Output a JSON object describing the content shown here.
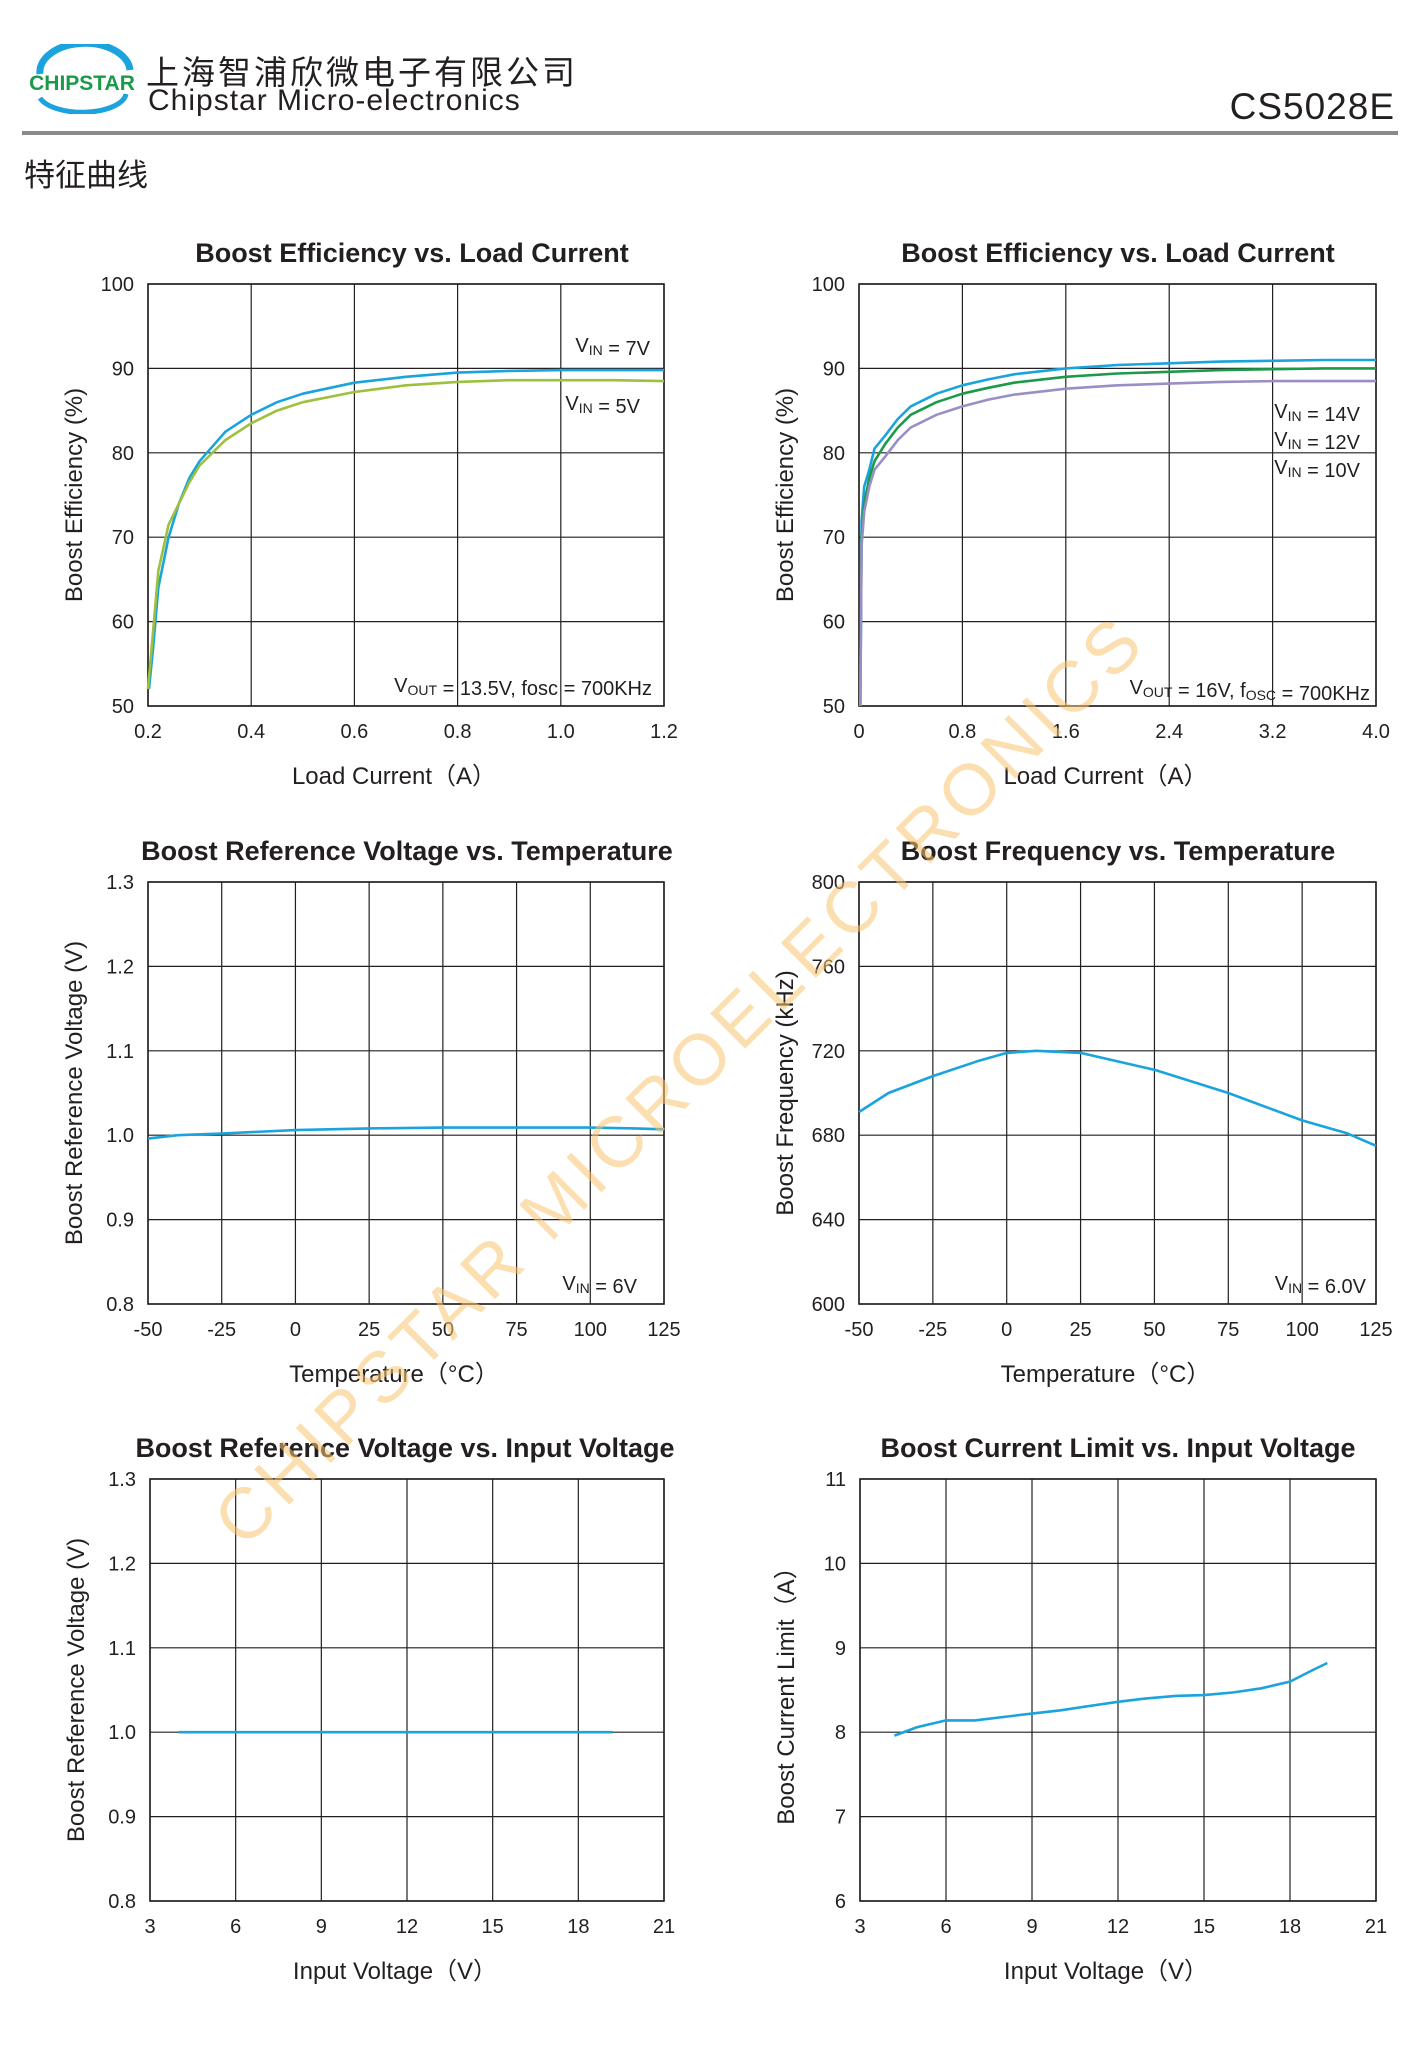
{
  "header": {
    "logo_text": "CHIPSTAR",
    "company_cn": "上海智浦欣微电子有限公司",
    "company_en": "Chipstar Micro-electronics",
    "part_number": "CS5028E"
  },
  "section_title": "特征曲线",
  "watermark": "CHIPSTAR MICROELECTRONICS",
  "colors": {
    "blue": "#1aa3dc",
    "green": "#9dc13c",
    "dark_green": "#1b9a4a",
    "purple": "#9a8fc4",
    "grid": "#231f20",
    "watermark": "#f9c36c"
  },
  "chart_data": [
    {
      "id": "c1",
      "type": "line",
      "title": "Boost Efficiency vs. Load Current",
      "xlabel": "Load Current（A）",
      "ylabel": "Boost Efficiency (%)",
      "xlim": [
        0.2,
        1.2
      ],
      "ylim": [
        50,
        100
      ],
      "xticks": [
        "0.2",
        "0.4",
        "0.6",
        "0.8",
        "1.0",
        "1.2"
      ],
      "yticks": [
        "50",
        "60",
        "70",
        "80",
        "90",
        "100"
      ],
      "grid": true,
      "annotation": {
        "pre": "V",
        "sub": "OUT",
        "post": " = 13.5V,  fosc = 700KHz"
      },
      "series": [
        {
          "label": {
            "pre": "V",
            "sub": "IN",
            "post": " = 7V"
          },
          "color": "#1aa3dc",
          "x": [
            0.202,
            0.21,
            0.22,
            0.24,
            0.26,
            0.28,
            0.3,
            0.35,
            0.4,
            0.45,
            0.5,
            0.6,
            0.7,
            0.8,
            0.9,
            1.0,
            1.1,
            1.2
          ],
          "y": [
            52,
            57,
            64,
            70,
            74,
            77,
            79,
            82.5,
            84.5,
            86,
            87,
            88.3,
            89,
            89.5,
            89.7,
            89.8,
            89.8,
            89.8
          ]
        },
        {
          "label": {
            "pre": "V",
            "sub": "IN",
            "post": " = 5V"
          },
          "color": "#9dc13c",
          "x": [
            0.2,
            0.21,
            0.22,
            0.24,
            0.26,
            0.28,
            0.3,
            0.35,
            0.4,
            0.45,
            0.5,
            0.6,
            0.7,
            0.8,
            0.9,
            1.0,
            1.1,
            1.2
          ],
          "y": [
            52,
            59,
            66,
            71.5,
            74,
            76.5,
            78.5,
            81.5,
            83.5,
            85,
            86,
            87.2,
            88,
            88.4,
            88.6,
            88.6,
            88.6,
            88.5
          ]
        }
      ]
    },
    {
      "id": "c2",
      "type": "line",
      "title": "Boost Efficiency vs. Load Current",
      "xlabel": "Load Current（A）",
      "ylabel": "Boost Efficiency (%)",
      "xlim": [
        0,
        4.0
      ],
      "ylim": [
        50,
        100
      ],
      "xticks": [
        "0",
        "0.8",
        "1.6",
        "2.4",
        "3.2",
        "4.0"
      ],
      "yticks": [
        "50",
        "60",
        "70",
        "80",
        "90",
        "100"
      ],
      "grid": true,
      "annotation": {
        "pre": "V",
        "sub": "OUT",
        "post": " = 16V,  f",
        "sub2": "OSC",
        "post2": " = 700KHz"
      },
      "series": [
        {
          "label": {
            "pre": "V",
            "sub": "IN",
            "post": " = 14V"
          },
          "color": "#1aa3dc",
          "x": [
            0.01,
            0.02,
            0.04,
            0.08,
            0.12,
            0.2,
            0.3,
            0.4,
            0.6,
            0.8,
            1.0,
            1.2,
            1.6,
            2.0,
            2.4,
            2.8,
            3.2,
            3.6,
            4.0
          ],
          "y": [
            50,
            72,
            76,
            78,
            80.5,
            82,
            84,
            85.5,
            87,
            88,
            88.7,
            89.3,
            90,
            90.4,
            90.6,
            90.8,
            90.9,
            91,
            91
          ]
        },
        {
          "label": {
            "pre": "V",
            "sub": "IN",
            "post": " = 12V"
          },
          "color": "#1b9a4a",
          "x": [
            0.01,
            0.02,
            0.04,
            0.08,
            0.12,
            0.2,
            0.3,
            0.4,
            0.6,
            0.8,
            1.0,
            1.2,
            1.6,
            2.0,
            2.4,
            2.8,
            3.2,
            3.6,
            4.0
          ],
          "y": [
            50,
            70,
            74,
            77,
            79,
            81,
            83,
            84.5,
            86,
            87,
            87.7,
            88.3,
            89,
            89.4,
            89.6,
            89.8,
            89.9,
            90,
            90
          ]
        },
        {
          "label": {
            "pre": "V",
            "sub": "IN",
            "post": " = 10V"
          },
          "color": "#9a8fc4",
          "x": [
            0.01,
            0.02,
            0.04,
            0.08,
            0.12,
            0.2,
            0.3,
            0.4,
            0.6,
            0.8,
            1.0,
            1.2,
            1.6,
            2.0,
            2.4,
            2.8,
            3.2,
            3.6,
            4.0
          ],
          "y": [
            50,
            69,
            73,
            76,
            78,
            79.5,
            81.5,
            83,
            84.5,
            85.5,
            86.3,
            86.9,
            87.6,
            88,
            88.2,
            88.4,
            88.5,
            88.5,
            88.5
          ]
        }
      ]
    },
    {
      "id": "c3",
      "type": "line",
      "title": "Boost Reference Voltage vs. Temperature",
      "xlabel": "Temperature（°C）",
      "ylabel": "Boost Reference Voltage (V)",
      "xlim": [
        -50,
        125
      ],
      "ylim": [
        0.8,
        1.3
      ],
      "xticks": [
        "-50",
        "-25",
        "0",
        "25",
        "50",
        "75",
        "100",
        "125"
      ],
      "yticks": [
        "0.8",
        "0.9",
        "1.0",
        "1.1",
        "1.2",
        "1.3"
      ],
      "grid": true,
      "annotation": {
        "pre": "V",
        "sub": "IN",
        "post": " = 6V"
      },
      "series": [
        {
          "color": "#1aa3dc",
          "x": [
            -50,
            -40,
            -25,
            0,
            25,
            50,
            75,
            100,
            115,
            125
          ],
          "y": [
            0.996,
            1.0,
            1.002,
            1.006,
            1.008,
            1.009,
            1.009,
            1.009,
            1.008,
            1.007
          ]
        }
      ]
    },
    {
      "id": "c4",
      "type": "line",
      "title": "Boost Frequency vs. Temperature",
      "xlabel": "Temperature（°C）",
      "ylabel": "Boost Frequency (kHz)",
      "xlim": [
        -50,
        125
      ],
      "ylim": [
        600,
        800
      ],
      "xticks": [
        "-50",
        "-25",
        "0",
        "25",
        "50",
        "75",
        "100",
        "125"
      ],
      "yticks": [
        "600",
        "640",
        "680",
        "720",
        "760",
        "800"
      ],
      "grid": true,
      "annotation": {
        "pre": "V",
        "sub": "IN",
        "post": " = 6.0V"
      },
      "series": [
        {
          "color": "#1aa3dc",
          "x": [
            -50,
            -40,
            -25,
            -10,
            0,
            10,
            25,
            50,
            75,
            100,
            115,
            125
          ],
          "y": [
            691,
            700,
            708,
            715,
            719,
            720,
            719,
            711,
            700,
            687,
            681,
            675
          ]
        }
      ]
    },
    {
      "id": "c5",
      "type": "line",
      "title": "Boost Reference Voltage vs. Input Voltage",
      "xlabel": "Input Voltage（V）",
      "ylabel": "Boost Reference Voltage (V)",
      "xlim": [
        3,
        21
      ],
      "ylim": [
        0.8,
        1.3
      ],
      "xticks": [
        "3",
        "6",
        "9",
        "12",
        "15",
        "18",
        "21"
      ],
      "yticks": [
        "0.8",
        "0.9",
        "1.0",
        "1.1",
        "1.2",
        "1.3"
      ],
      "grid": true,
      "series": [
        {
          "color": "#1aa3dc",
          "x": [
            4,
            19.2
          ],
          "y": [
            1.0,
            1.0
          ]
        }
      ]
    },
    {
      "id": "c6",
      "type": "line",
      "title": "Boost Current Limit vs. Input Voltage",
      "xlabel": "Input Voltage（V）",
      "ylabel": "Boost Current Limit（A）",
      "xlim": [
        3,
        21
      ],
      "ylim": [
        6,
        11
      ],
      "xticks": [
        "3",
        "6",
        "9",
        "12",
        "15",
        "18",
        "21"
      ],
      "yticks": [
        "6",
        "7",
        "8",
        "9",
        "10",
        "11"
      ],
      "grid": true,
      "series": [
        {
          "color": "#1aa3dc",
          "x": [
            4.2,
            5,
            6,
            7,
            8,
            9,
            10,
            11,
            12,
            13,
            14,
            15,
            16,
            17,
            18,
            18.7,
            19.3
          ],
          "y": [
            7.96,
            8.06,
            8.14,
            8.14,
            8.18,
            8.22,
            8.26,
            8.31,
            8.36,
            8.4,
            8.43,
            8.44,
            8.47,
            8.52,
            8.6,
            8.72,
            8.82
          ]
        }
      ]
    }
  ]
}
